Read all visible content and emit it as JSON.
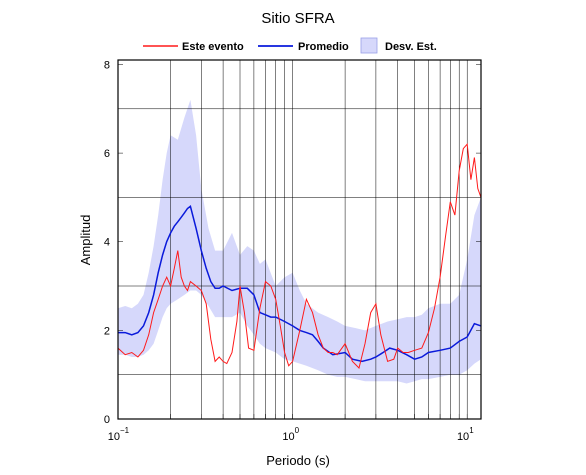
{
  "chart_data": {
    "type": "line",
    "title": "Sitio SFRA",
    "xlabel": "Periodo (s)",
    "ylabel": "Amplitud",
    "xscale": "log",
    "xlim": [
      0.1,
      12
    ],
    "ylim": [
      0,
      8.1
    ],
    "x_ticks": [
      {
        "base": "10",
        "exp": "−1"
      },
      {
        "base": "10",
        "exp": "0"
      },
      {
        "base": "10",
        "exp": "1"
      }
    ],
    "y_ticks": [
      "0",
      "2",
      "4",
      "6",
      "8"
    ],
    "grid": "x-major-minor-log, y-at-1-3-5-7",
    "legend_position": "top",
    "legend": [
      {
        "label": "Este evento",
        "kind": "line",
        "color": "#ff1a1a"
      },
      {
        "label": "Promedio",
        "kind": "line",
        "color": "#0a1adb"
      },
      {
        "label": "Desv. Est.",
        "kind": "patch",
        "color": "#d6d8fb",
        "edge": "#9aa0e8"
      }
    ],
    "series": [
      {
        "name": "Este evento",
        "color": "#ff1a1a",
        "x": [
          0.1,
          0.11,
          0.12,
          0.13,
          0.14,
          0.15,
          0.16,
          0.17,
          0.18,
          0.19,
          0.2,
          0.21,
          0.22,
          0.23,
          0.24,
          0.25,
          0.26,
          0.28,
          0.3,
          0.32,
          0.34,
          0.36,
          0.38,
          0.4,
          0.42,
          0.45,
          0.48,
          0.5,
          0.53,
          0.56,
          0.6,
          0.65,
          0.7,
          0.75,
          0.8,
          0.85,
          0.9,
          0.95,
          1.0,
          1.1,
          1.2,
          1.3,
          1.4,
          1.5,
          1.6,
          1.7,
          1.8,
          2.0,
          2.2,
          2.4,
          2.6,
          2.8,
          3.0,
          3.2,
          3.5,
          3.8,
          4.0,
          4.3,
          4.6,
          5.0,
          5.5,
          6.0,
          6.5,
          7.0,
          7.5,
          8.0,
          8.5,
          9.0,
          9.5,
          10.0,
          10.5,
          11.0,
          11.5,
          12.0
        ],
        "y": [
          1.6,
          1.45,
          1.5,
          1.4,
          1.55,
          1.9,
          2.4,
          2.7,
          3.0,
          3.2,
          3.0,
          3.4,
          3.8,
          3.2,
          3.0,
          2.9,
          3.1,
          3.0,
          2.9,
          2.6,
          1.8,
          1.3,
          1.4,
          1.3,
          1.25,
          1.5,
          2.2,
          3.0,
          2.4,
          1.6,
          1.55,
          2.5,
          3.1,
          3.0,
          2.7,
          2.1,
          1.5,
          1.2,
          1.3,
          2.0,
          2.7,
          2.4,
          1.9,
          1.6,
          1.5,
          1.5,
          1.45,
          1.7,
          1.3,
          1.15,
          1.7,
          2.4,
          2.6,
          1.9,
          1.3,
          1.35,
          1.6,
          1.5,
          1.5,
          1.55,
          1.6,
          1.95,
          2.5,
          3.2,
          4.1,
          4.9,
          4.6,
          5.6,
          6.1,
          6.2,
          5.4,
          5.9,
          5.2,
          5.0
        ]
      },
      {
        "name": "Promedio",
        "color": "#0a1adb",
        "x": [
          0.1,
          0.11,
          0.12,
          0.13,
          0.14,
          0.15,
          0.16,
          0.17,
          0.18,
          0.19,
          0.2,
          0.21,
          0.22,
          0.23,
          0.24,
          0.25,
          0.26,
          0.28,
          0.3,
          0.32,
          0.34,
          0.36,
          0.38,
          0.4,
          0.45,
          0.5,
          0.55,
          0.6,
          0.65,
          0.7,
          0.75,
          0.8,
          0.9,
          1.0,
          1.1,
          1.2,
          1.3,
          1.4,
          1.5,
          1.7,
          2.0,
          2.2,
          2.5,
          2.8,
          3.0,
          3.3,
          3.6,
          4.0,
          4.5,
          5.0,
          5.5,
          6.0,
          7.0,
          8.0,
          9.0,
          10.0,
          11.0,
          12.0
        ],
        "y": [
          1.95,
          1.95,
          1.9,
          1.95,
          2.1,
          2.4,
          2.8,
          3.3,
          3.7,
          4.0,
          4.2,
          4.35,
          4.45,
          4.55,
          4.65,
          4.75,
          4.8,
          4.3,
          3.8,
          3.4,
          3.1,
          2.95,
          2.95,
          3.0,
          2.9,
          2.95,
          2.95,
          2.8,
          2.4,
          2.35,
          2.3,
          2.3,
          2.2,
          2.1,
          2.0,
          1.95,
          1.9,
          1.75,
          1.6,
          1.45,
          1.5,
          1.35,
          1.3,
          1.35,
          1.4,
          1.5,
          1.6,
          1.55,
          1.45,
          1.35,
          1.4,
          1.5,
          1.55,
          1.6,
          1.75,
          1.85,
          2.15,
          2.1
        ]
      }
    ],
    "band": {
      "name": "Desv. Est.",
      "x": [
        0.1,
        0.11,
        0.12,
        0.13,
        0.14,
        0.15,
        0.16,
        0.17,
        0.18,
        0.19,
        0.2,
        0.22,
        0.24,
        0.26,
        0.28,
        0.3,
        0.33,
        0.36,
        0.4,
        0.45,
        0.5,
        0.55,
        0.6,
        0.65,
        0.7,
        0.8,
        0.9,
        1.0,
        1.1,
        1.2,
        1.4,
        1.6,
        1.8,
        2.0,
        2.3,
        2.6,
        3.0,
        3.5,
        4.0,
        4.5,
        5.0,
        5.5,
        6.0,
        7.0,
        8.0,
        9.0,
        10.0,
        11.0,
        12.0
      ],
      "upper": [
        2.5,
        2.55,
        2.5,
        2.6,
        2.8,
        3.3,
        3.9,
        4.6,
        5.4,
        6.0,
        6.4,
        6.3,
        6.8,
        7.2,
        6.4,
        5.2,
        4.3,
        3.8,
        3.8,
        4.2,
        3.7,
        3.9,
        3.8,
        3.5,
        3.6,
        3.0,
        3.2,
        3.3,
        2.9,
        2.6,
        2.4,
        2.3,
        2.2,
        2.1,
        2.05,
        2.0,
        2.1,
        2.2,
        2.25,
        2.3,
        2.3,
        2.35,
        2.5,
        2.6,
        2.6,
        2.8,
        3.6,
        4.6,
        5.0
      ],
      "lower": [
        1.45,
        1.45,
        1.4,
        1.4,
        1.45,
        1.55,
        1.7,
        2.0,
        2.3,
        2.5,
        2.6,
        2.7,
        2.8,
        2.9,
        2.9,
        2.8,
        2.55,
        2.3,
        2.3,
        2.3,
        2.4,
        2.1,
        1.9,
        1.7,
        1.6,
        1.5,
        1.35,
        1.3,
        1.25,
        1.2,
        1.1,
        1.0,
        0.95,
        0.95,
        0.9,
        0.85,
        0.85,
        0.85,
        0.85,
        0.8,
        0.85,
        0.9,
        0.9,
        0.95,
        1.0,
        1.0,
        1.1,
        1.25,
        1.35
      ]
    }
  }
}
